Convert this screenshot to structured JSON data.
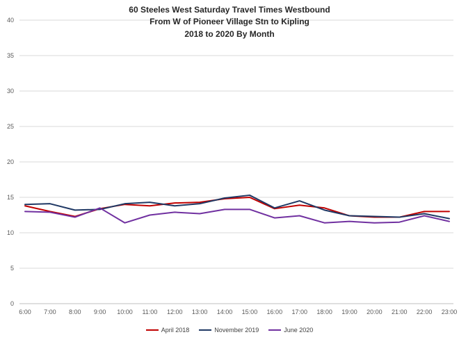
{
  "chart_data": {
    "type": "line",
    "title": "60 Steeles West Saturday Travel Times Westbound From W of Pioneer Village Stn to Kipling 2018 to 2020 By Month",
    "title_lines": [
      "60 Steeles West Saturday Travel Times Westbound",
      "From W of Pioneer Village Stn to Kipling",
      "2018 to 2020 By Month"
    ],
    "xlabel": "",
    "ylabel": "",
    "ylim": [
      0,
      40
    ],
    "ytick_step": 5,
    "grid": true,
    "legend_position": "bottom",
    "colors": {
      "grid": "#d9d9d9",
      "axis": "#bfbfbf",
      "tick_text": "#595959"
    },
    "x": [
      "6:00",
      "7:00",
      "8:00",
      "9:00",
      "10:00",
      "11:00",
      "12:00",
      "13:00",
      "14:00",
      "15:00",
      "16:00",
      "17:00",
      "18:00",
      "19:00",
      "20:00",
      "21:00",
      "22:00",
      "23:00"
    ],
    "series": [
      {
        "name": "April 2018",
        "color": "#c00000",
        "values": [
          13.8,
          13.0,
          12.3,
          13.4,
          14.0,
          13.8,
          14.2,
          14.3,
          14.8,
          15.0,
          13.4,
          13.9,
          13.5,
          12.4,
          12.2,
          12.2,
          13.0,
          13.0
        ]
      },
      {
        "name": "November 2019",
        "color": "#1f3864",
        "values": [
          14.0,
          14.1,
          13.2,
          13.3,
          14.1,
          14.3,
          13.8,
          14.1,
          14.9,
          15.3,
          13.5,
          14.5,
          13.2,
          12.4,
          12.3,
          12.2,
          12.7,
          12.0
        ]
      },
      {
        "name": "June 2020",
        "color": "#7030a0",
        "values": [
          13.0,
          12.9,
          12.2,
          13.5,
          11.4,
          12.5,
          12.9,
          12.7,
          13.3,
          13.3,
          12.1,
          12.4,
          11.4,
          11.6,
          11.4,
          11.5,
          12.4,
          11.6
        ]
      }
    ]
  }
}
